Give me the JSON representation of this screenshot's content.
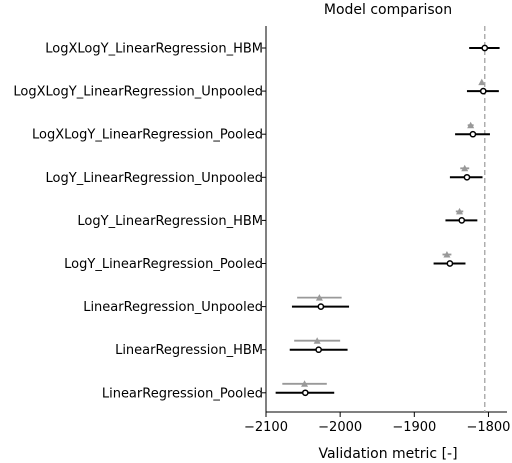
{
  "chart_data": {
    "type": "scatter",
    "title": "Model comparison",
    "xlabel": "Validation metric [-]",
    "ylabel": "",
    "xlim": [
      -2100,
      -1775
    ],
    "xticks": [
      -2100,
      -2000,
      -1900,
      -1800
    ],
    "xtick_labels": [
      "−2100",
      "−2000",
      "−1900",
      "−1800"
    ],
    "reference_line_x": -1805,
    "grid": false,
    "categories": [
      "LogXLogY_LinearRegression_HBM",
      "LogXLogY_LinearRegression_Unpooled",
      "LogXLogY_LinearRegression_Pooled",
      "LogY_LinearRegression_Unpooled",
      "LogY_LinearRegression_HBM",
      "LogY_LinearRegression_Pooled",
      "LinearRegression_Unpooled",
      "LinearRegression_HBM",
      "LinearRegression_Pooled"
    ],
    "series": [
      {
        "values": [
          -1805,
          -1807,
          -1821,
          -1829,
          -1836,
          -1852,
          -2026,
          -2029,
          -2047
        ],
        "err_low": [
          -1826,
          -1829,
          -1845,
          -1852,
          -1858,
          -1874,
          -2065,
          -2068,
          -2087
        ],
        "err_high": [
          -1785,
          -1786,
          -1798,
          -1808,
          -1815,
          -1831,
          -1988,
          -1990,
          -2008
        ]
      },
      {
        "values": [
          null,
          -1809,
          -1824,
          -1832,
          -1839,
          -1856,
          -2028,
          -2031,
          -2048
        ],
        "err_low": [
          null,
          null,
          -1828,
          -1838,
          -1844,
          -1862,
          -2058,
          -2062,
          -2078
        ],
        "err_high": [
          null,
          null,
          -1820,
          -1826,
          -1834,
          -1850,
          -1998,
          -2000,
          -2018
        ]
      }
    ],
    "colors": {
      "main": "#000000",
      "secondary": "#999999",
      "reference": "#aaaaaa"
    }
  }
}
